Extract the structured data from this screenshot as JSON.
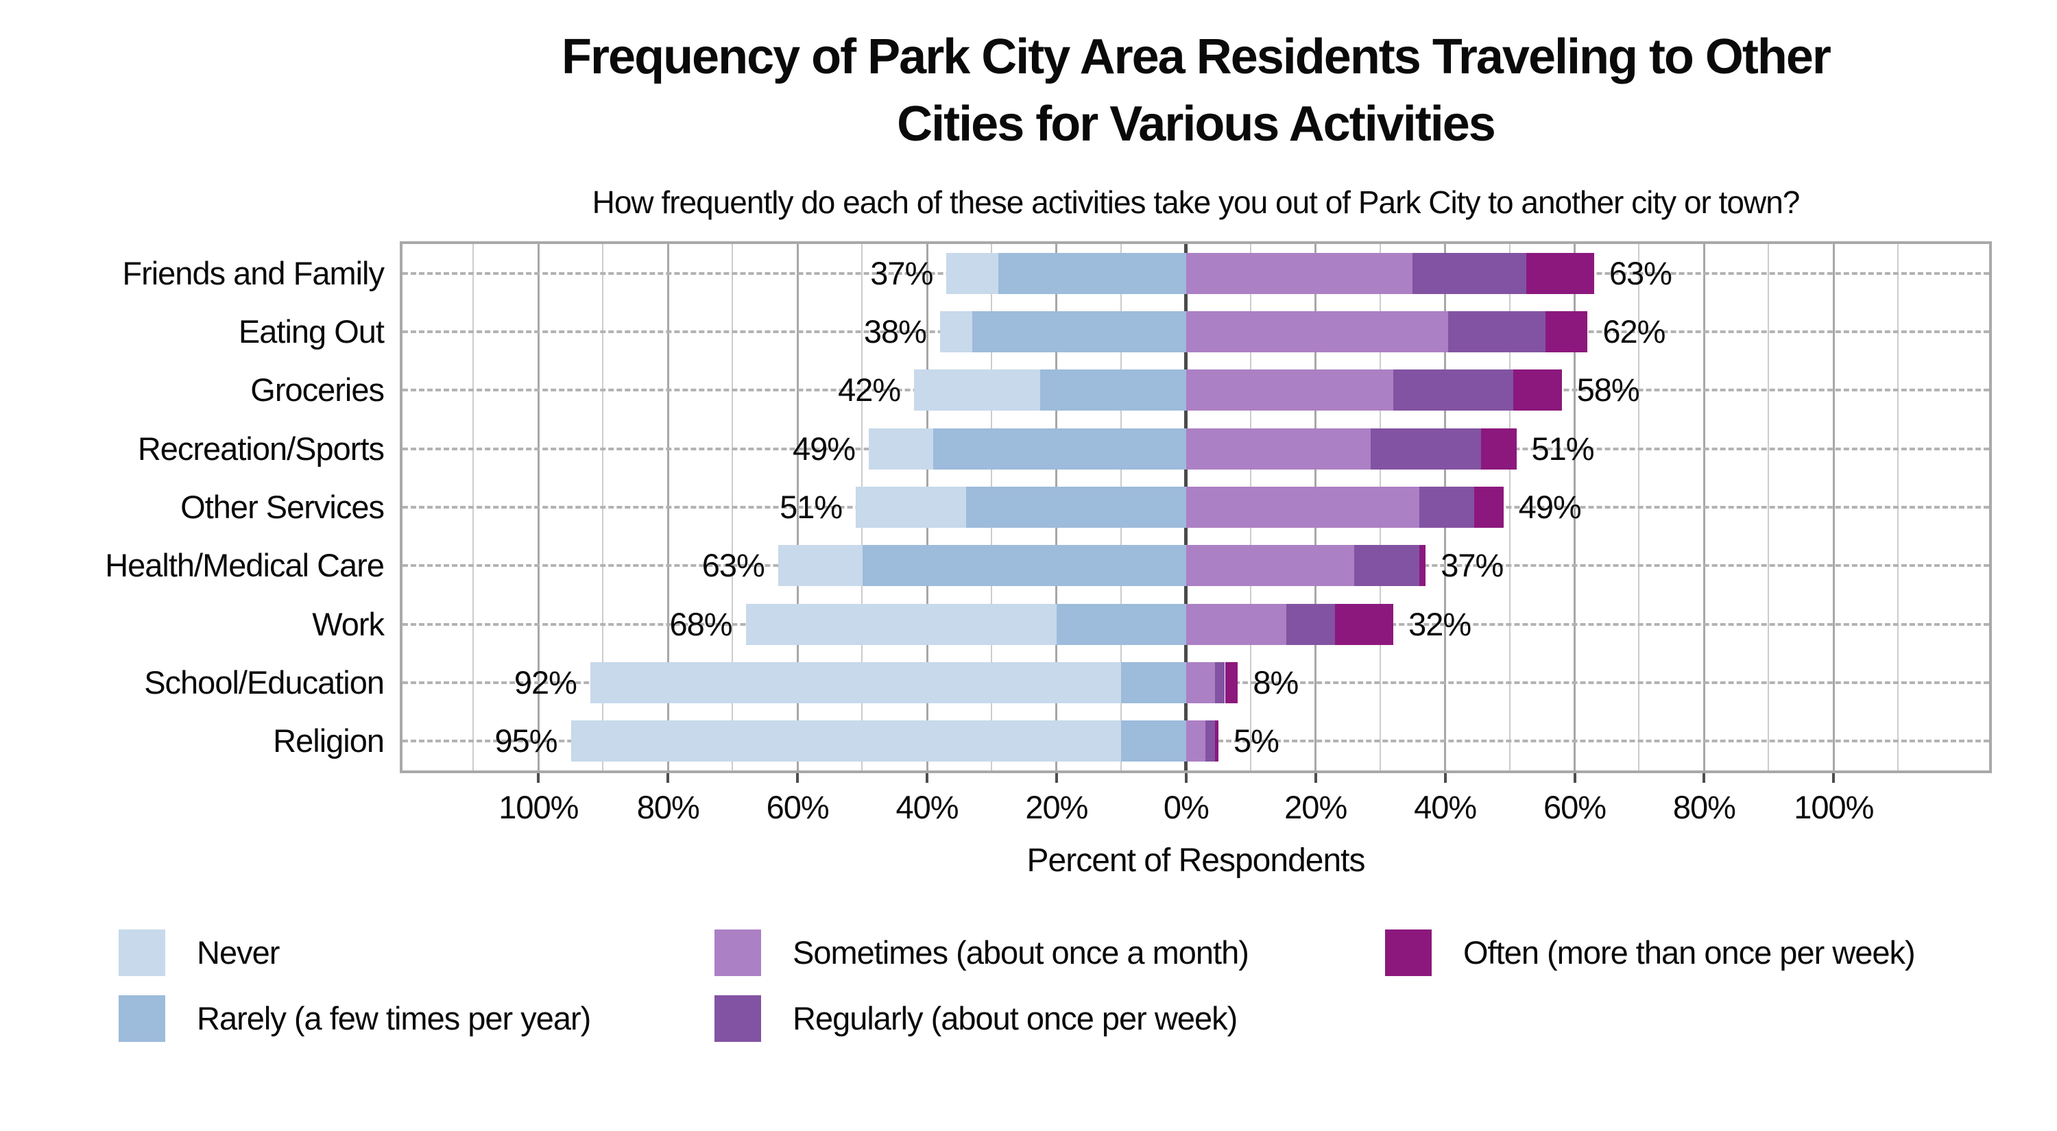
{
  "title": {
    "line1": "Frequency of Park City Area Residents Traveling to Other",
    "line2": "Cities for Various Activities"
  },
  "subtitle": "How frequently do each of these activities take you out of Park City to another city or town?",
  "axis": {
    "title": "Percent of Respondents",
    "ticks": [
      {
        "value": -100,
        "label": "100%"
      },
      {
        "value": -80,
        "label": "80%"
      },
      {
        "value": -60,
        "label": "60%"
      },
      {
        "value": -40,
        "label": "40%"
      },
      {
        "value": -20,
        "label": "20%"
      },
      {
        "value": 0,
        "label": "0%"
      },
      {
        "value": 20,
        "label": "20%"
      },
      {
        "value": 40,
        "label": "40%"
      },
      {
        "value": 60,
        "label": "60%"
      },
      {
        "value": 80,
        "label": "80%"
      },
      {
        "value": 100,
        "label": "100%"
      }
    ]
  },
  "colors": {
    "never": "#C7D9EB",
    "rarely": "#9DBBDB",
    "sometimes": "#AC80C4",
    "regularly": "#8253A2",
    "often": "#8C187D",
    "grid_minor": "#cccccc",
    "grid_major": "#a7a7a7",
    "zero_line": "#4a4a4a",
    "border": "#a9a9a9"
  },
  "legend": [
    {
      "label": "Never",
      "color": "#C7D9EB"
    },
    {
      "label": "Rarely (a few times per year)",
      "color": "#9DBBDB"
    },
    {
      "label": "Sometimes (about once a month)",
      "color": "#AC80C4"
    },
    {
      "label": "Regularly (about once per week)",
      "color": "#8253A2"
    },
    {
      "label": "Often (more than once per week)",
      "color": "#8C187D"
    }
  ],
  "chart_data": {
    "type": "bar",
    "orientation": "horizontal-diverging-stacked",
    "title": "Frequency of Park City Area Residents Traveling to Other Cities for Various Activities",
    "xlabel": "Percent of Respondents",
    "xlim": [
      -121,
      124
    ],
    "grid": {
      "minor_step": 10,
      "major_step": 20,
      "minor_range": [
        -110,
        110
      ]
    },
    "legend_position": "bottom",
    "categories": [
      "Friends and Family",
      "Eating Out",
      "Groceries",
      "Recreation/Sports",
      "Other Services",
      "Health/Medical Care",
      "Work",
      "School/Education",
      "Religion"
    ],
    "series": [
      {
        "name": "Never",
        "side": "left",
        "values": [
          8,
          5,
          19.5,
          10,
          17,
          13,
          48,
          82,
          85
        ]
      },
      {
        "name": "Rarely (a few times per year)",
        "side": "left",
        "values": [
          29,
          33,
          22.5,
          39,
          34,
          50,
          20,
          10,
          10
        ]
      },
      {
        "name": "Sometimes (about once a month)",
        "side": "right",
        "values": [
          35,
          40.5,
          32,
          28.5,
          36,
          26,
          15.5,
          4.5,
          3
        ]
      },
      {
        "name": "Regularly (about once per week)",
        "side": "right",
        "values": [
          17.5,
          15,
          18.5,
          17,
          8.5,
          10,
          7.5,
          1.5,
          1.5
        ]
      },
      {
        "name": "Often (more than once per week)",
        "side": "right",
        "values": [
          10.5,
          6.5,
          7.5,
          5.5,
          4.5,
          1,
          9,
          2,
          0.5
        ]
      }
    ],
    "left_total_labels": [
      "37%",
      "38%",
      "42%",
      "49%",
      "51%",
      "63%",
      "68%",
      "92%",
      "95%"
    ],
    "right_total_labels": [
      "63%",
      "62%",
      "58%",
      "51%",
      "49%",
      "37%",
      "32%",
      "8%",
      "5%"
    ]
  }
}
